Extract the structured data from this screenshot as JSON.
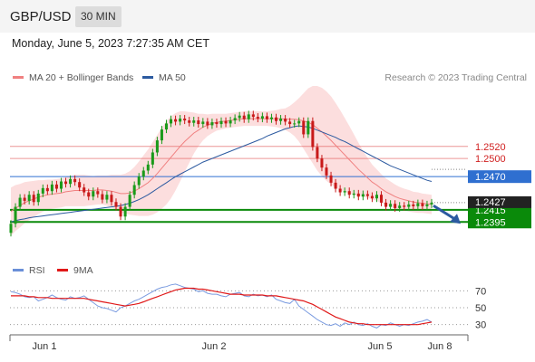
{
  "header": {
    "symbol": "GBP/USD",
    "timeframe": "30 MIN"
  },
  "datetime": "Monday, June 5, 2023 7:27:35 AM CET",
  "legend": {
    "ma20_bb": {
      "label": "MA 20 + Bollinger Bands",
      "color": "#f08080"
    },
    "ma50": {
      "label": "MA 50",
      "color": "#2c5aa0"
    },
    "credit": "Research © 2023 Trading Central"
  },
  "rsi_legend": {
    "rsi": {
      "label": "RSI",
      "color": "#6a8fd8"
    },
    "ma9": {
      "label": "9MA",
      "color": "#e01818"
    }
  },
  "chart_data": [
    {
      "type": "candlestick",
      "title": "GBP/USD",
      "ylim": [
        1.234,
        1.262
      ],
      "xlabels": [
        "Jun 1",
        "Jun 2",
        "Jun 5",
        "Jun 8"
      ],
      "current_price": {
        "value": 1.2427,
        "label": "1.2427"
      },
      "levels": [
        {
          "label": "1.2520",
          "value": 1.252,
          "kind": "resistance",
          "color": "#e05050"
        },
        {
          "label": "1.2500",
          "value": 1.25,
          "kind": "resistance",
          "color": "#e05050"
        },
        {
          "label": "1.2470",
          "value": 1.247,
          "kind": "pivot",
          "color": "#2f6fd0"
        },
        {
          "label": "1.2415",
          "value": 1.2415,
          "kind": "support",
          "color": "#0a8a0a"
        },
        {
          "label": "1.2395",
          "value": 1.2395,
          "kind": "support",
          "color": "#0a8a0a"
        }
      ],
      "close": [
        1.2392,
        1.242,
        1.2435,
        1.243,
        1.244,
        1.2428,
        1.2442,
        1.2451,
        1.2446,
        1.2457,
        1.245,
        1.2462,
        1.2458,
        1.2466,
        1.2461,
        1.2452,
        1.2444,
        1.2437,
        1.2446,
        1.2441,
        1.2432,
        1.244,
        1.2428,
        1.242,
        1.2404,
        1.242,
        1.244,
        1.2456,
        1.247,
        1.248,
        1.249,
        1.251,
        1.253,
        1.2548,
        1.2558,
        1.2565,
        1.2561,
        1.2566,
        1.2563,
        1.2559,
        1.2563,
        1.2557,
        1.2561,
        1.2555,
        1.256,
        1.2557,
        1.2562,
        1.2558,
        1.2563,
        1.2567,
        1.2571,
        1.2565,
        1.2573,
        1.2569,
        1.2566,
        1.257,
        1.2565,
        1.2568,
        1.2562,
        1.2566,
        1.2561,
        1.2557,
        1.2558,
        1.2562,
        1.254,
        1.2562,
        1.2519,
        1.25,
        1.2485,
        1.2472,
        1.246,
        1.245,
        1.2444,
        1.2446,
        1.244,
        1.2442,
        1.2437,
        1.2441,
        1.2438,
        1.2434,
        1.244,
        1.2427,
        1.242,
        1.2425,
        1.2418,
        1.2422,
        1.242,
        1.2424,
        1.2421,
        1.2426,
        1.2421,
        1.2424,
        1.2427
      ],
      "ma20": [
        1.2412,
        1.2418,
        1.2422,
        1.2427,
        1.243,
        1.2433,
        1.2436,
        1.2438,
        1.244,
        1.2441,
        1.2442,
        1.2443,
        1.2445,
        1.2446,
        1.2447,
        1.2447,
        1.2447,
        1.2447,
        1.2447,
        1.2448,
        1.2448,
        1.2447,
        1.2446,
        1.2444,
        1.2442,
        1.2442,
        1.2443,
        1.2446,
        1.245,
        1.2455,
        1.246,
        1.2467,
        1.2475,
        1.2484,
        1.2493,
        1.2502,
        1.2511,
        1.252,
        1.2528,
        1.2535,
        1.2542,
        1.2547,
        1.2552,
        1.2555,
        1.2558,
        1.256,
        1.2561,
        1.2562,
        1.2563,
        1.2564,
        1.2565,
        1.2566,
        1.2566,
        1.2566,
        1.2566,
        1.2566,
        1.2566,
        1.2566,
        1.2566,
        1.2566,
        1.2565,
        1.2565,
        1.2565,
        1.2564,
        1.2562,
        1.256,
        1.2556,
        1.255,
        1.2544,
        1.2537,
        1.253,
        1.2522,
        1.2514,
        1.2506,
        1.2498,
        1.249,
        1.2482,
        1.2475,
        1.2468,
        1.2461,
        1.2456,
        1.245,
        1.2445,
        1.2441,
        1.2437,
        1.2434,
        1.2432,
        1.243,
        1.2428,
        1.2427,
        1.2426,
        1.2425,
        1.2424
      ],
      "bb_halfwidth": [
        0.004,
        0.0038,
        0.0036,
        0.0034,
        0.0032,
        0.003,
        0.0028,
        0.0026,
        0.0025,
        0.0024,
        0.0024,
        0.0024,
        0.0024,
        0.0025,
        0.0026,
        0.0026,
        0.0026,
        0.0025,
        0.0024,
        0.0024,
        0.0024,
        0.0025,
        0.0027,
        0.0029,
        0.0031,
        0.0033,
        0.0036,
        0.004,
        0.0045,
        0.005,
        0.0055,
        0.006,
        0.0064,
        0.0067,
        0.0069,
        0.0068,
        0.0064,
        0.0058,
        0.005,
        0.0042,
        0.0034,
        0.0027,
        0.0022,
        0.0018,
        0.0016,
        0.0014,
        0.0013,
        0.0012,
        0.0012,
        0.0012,
        0.0012,
        0.0012,
        0.0012,
        0.0012,
        0.0012,
        0.0012,
        0.0012,
        0.0013,
        0.0014,
        0.0016,
        0.0018,
        0.0022,
        0.0028,
        0.0036,
        0.0046,
        0.0056,
        0.0064,
        0.007,
        0.0073,
        0.0074,
        0.0073,
        0.007,
        0.0066,
        0.0061,
        0.0056,
        0.005,
        0.0044,
        0.0038,
        0.0033,
        0.0029,
        0.0026,
        0.0024,
        0.0022,
        0.0021,
        0.002,
        0.0019,
        0.0018,
        0.0018,
        0.0017,
        0.0017,
        0.0016,
        0.0016,
        0.0016
      ],
      "ma50": [
        1.2395,
        1.2397,
        1.2399,
        1.24,
        1.2402,
        1.2403,
        1.2404,
        1.2405,
        1.2406,
        1.2407,
        1.2408,
        1.2409,
        1.241,
        1.2411,
        1.2412,
        1.2413,
        1.2414,
        1.2415,
        1.2416,
        1.2417,
        1.2418,
        1.2419,
        1.242,
        1.2421,
        1.2422,
        1.2424,
        1.2426,
        1.2429,
        1.2432,
        1.2436,
        1.244,
        1.2445,
        1.245,
        1.2455,
        1.246,
        1.2465,
        1.247,
        1.2474,
        1.2478,
        1.2482,
        1.2486,
        1.249,
        1.2494,
        1.2497,
        1.25,
        1.2503,
        1.2506,
        1.2509,
        1.2512,
        1.2515,
        1.2518,
        1.2521,
        1.2524,
        1.2527,
        1.253,
        1.2533,
        1.2537,
        1.254,
        1.2543,
        1.2546,
        1.2549,
        1.2551,
        1.2553,
        1.2554,
        1.2553,
        1.2552,
        1.255,
        1.2547,
        1.2544,
        1.2541,
        1.2538,
        1.2535,
        1.2531,
        1.2528,
        1.2524,
        1.252,
        1.2516,
        1.2512,
        1.2508,
        1.2504,
        1.25,
        1.2496,
        1.2492,
        1.2488,
        1.2485,
        1.2482,
        1.2479,
        1.2476,
        1.2473,
        1.247,
        1.2467,
        1.2464,
        1.2462
      ]
    },
    {
      "type": "line",
      "title": "RSI",
      "ylim": [
        20,
        80
      ],
      "yticks": [
        70,
        50,
        30
      ],
      "rsi": [
        69,
        68,
        66,
        63,
        62,
        63,
        58,
        60,
        62,
        65,
        62,
        60,
        59,
        63,
        61,
        62,
        64,
        60,
        56,
        52,
        50,
        49,
        47,
        45,
        50,
        52,
        55,
        58,
        60,
        63,
        66,
        69,
        72,
        74,
        75,
        77,
        78,
        76,
        74,
        73,
        72,
        69,
        70,
        67,
        66,
        66,
        64,
        63,
        66,
        67,
        68,
        64,
        63,
        66,
        64,
        65,
        63,
        65,
        60,
        58,
        56,
        55,
        60,
        52,
        48,
        44,
        40,
        36,
        33,
        30,
        29,
        31,
        28,
        32,
        30,
        33,
        30,
        29,
        31,
        28,
        26,
        30,
        29,
        32,
        30,
        28,
        30,
        29,
        31,
        33,
        34,
        36,
        33
      ],
      "ma9": [
        64,
        64,
        64,
        64,
        63,
        63,
        62,
        62,
        62,
        61,
        61,
        61,
        61,
        61,
        61,
        61,
        61,
        60,
        59,
        58,
        57,
        56,
        55,
        54,
        53,
        52,
        53,
        54,
        55,
        57,
        59,
        61,
        63,
        65,
        67,
        69,
        71,
        72,
        73,
        73,
        73,
        72,
        72,
        71,
        70,
        69,
        68,
        67,
        66,
        66,
        66,
        65,
        65,
        65,
        65,
        65,
        64,
        64,
        64,
        63,
        62,
        61,
        60,
        59,
        58,
        56,
        54,
        51,
        48,
        45,
        42,
        39,
        37,
        35,
        33,
        32,
        31,
        31,
        30,
        30,
        30,
        30,
        30,
        30,
        30,
        30,
        30,
        30,
        30,
        30,
        31,
        32,
        33
      ]
    }
  ]
}
